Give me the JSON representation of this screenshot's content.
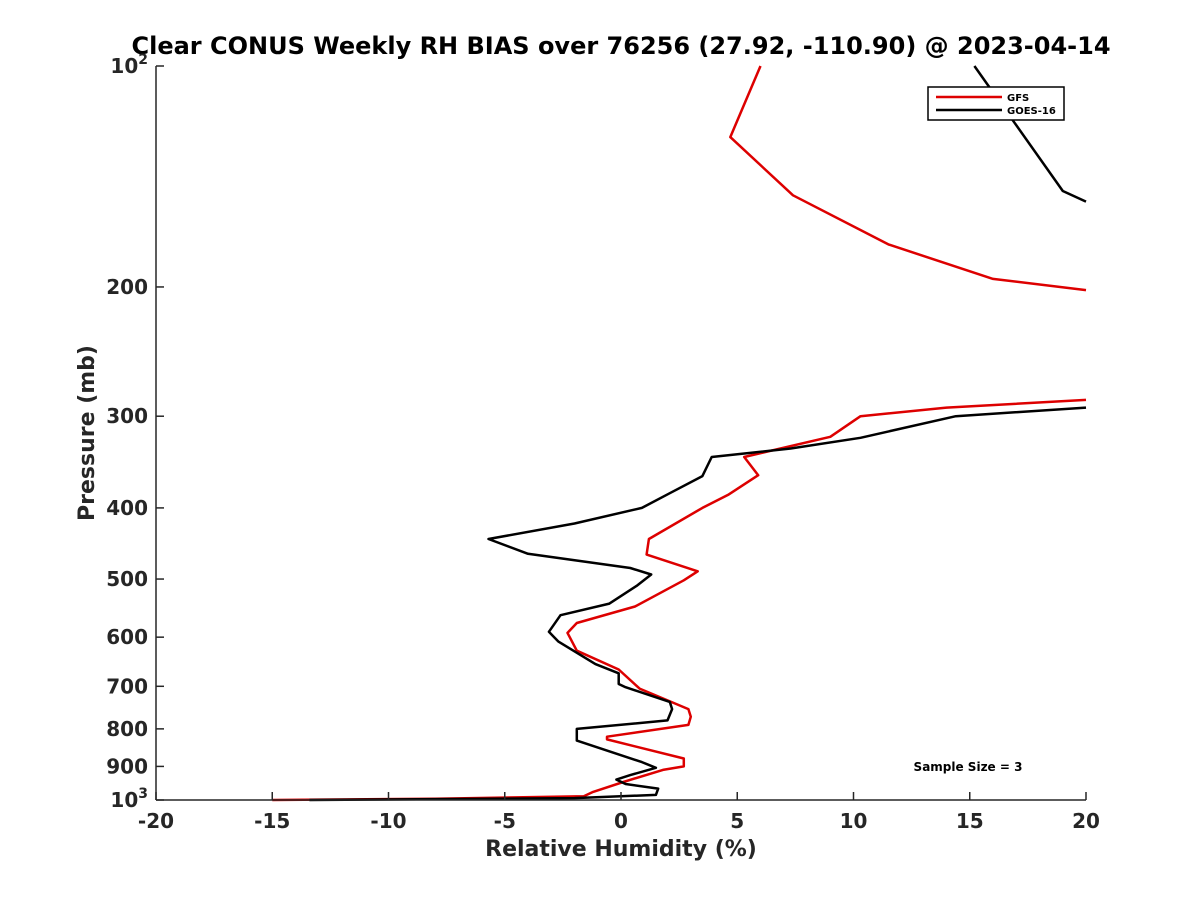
{
  "chart_data": {
    "type": "line",
    "title": "Clear CONUS Weekly RH BIAS over 76256 (27.92, -110.90) @ 2023-04-14",
    "xlabel": "Relative Humidity (%)",
    "ylabel": "Pressure (mb)",
    "xlim": [
      -20,
      20
    ],
    "ylim": [
      100,
      1000
    ],
    "yscale": "log",
    "y_reversed": true,
    "grid": false,
    "x_ticks": [
      -20,
      -15,
      -10,
      -5,
      0,
      5,
      10,
      15,
      20
    ],
    "x_tick_labels": [
      "-20",
      "-15",
      "-10",
      "-5",
      "0",
      "5",
      "10",
      "15",
      "20"
    ],
    "y_ticks": [
      {
        "value": 100,
        "label": "10",
        "exp": "2"
      },
      {
        "value": 200,
        "label": "200"
      },
      {
        "value": 300,
        "label": "300"
      },
      {
        "value": 400,
        "label": "400"
      },
      {
        "value": 500,
        "label": "500"
      },
      {
        "value": 600,
        "label": "600"
      },
      {
        "value": 700,
        "label": "700"
      },
      {
        "value": 800,
        "label": "800"
      },
      {
        "value": 900,
        "label": "900"
      },
      {
        "value": 1000,
        "label": "10",
        "exp": "3"
      }
    ],
    "legend_position": "top-right",
    "annotation": "Sample Size = 3",
    "series": [
      {
        "name": "GFS",
        "color": "#dd0000",
        "segments": [
          {
            "x": [
              6.0,
              4.7,
              7.4,
              11.5,
              16.0,
              20.0
            ],
            "y": [
              100,
              125,
              150,
              175,
              195,
              202
            ]
          },
          {
            "x": [
              20.0,
              14.0,
              10.3,
              9.0,
              5.3,
              5.9,
              4.6,
              3.5,
              1.2,
              1.1,
              3.3,
              2.7,
              0.6,
              -1.9,
              -2.3,
              -1.9,
              -0.1,
              0.8,
              2.9,
              3.0,
              2.9,
              -0.6,
              -0.6,
              2.7,
              2.7,
              1.8,
              0.1,
              -1.2,
              -1.6,
              -8.0,
              -15.0
            ],
            "y": [
              285,
              292,
              300,
              320,
              341,
              361,
              384,
              400,
              441,
              463,
              488,
              502,
              545,
              574,
              592,
              626,
              664,
              705,
              752,
              770,
              790,
              820,
              827,
              878,
              900,
              910,
              945,
              975,
              988,
              996,
              1000
            ]
          }
        ]
      },
      {
        "name": "GOES-16",
        "color": "#000000",
        "segments": [
          {
            "x": [
              15.2,
              19.0,
              20.0
            ],
            "y": [
              100,
              148,
              153
            ]
          },
          {
            "x": [
              20.0,
              14.4,
              10.3,
              7.3,
              3.9,
              3.5,
              2.1,
              0.9,
              -2.0,
              -5.7,
              -4.0,
              0.4,
              1.3,
              0.7,
              -0.5,
              -2.6,
              -3.1,
              -2.7,
              -1.1,
              -0.1,
              -0.1,
              0.2,
              2.1,
              2.2,
              2.0,
              -1.9,
              -1.9,
              0.9,
              1.5,
              0.4,
              -0.2,
              0.2,
              1.6,
              1.5,
              -2.0,
              -13.4
            ],
            "y": [
              292,
              300,
              321,
              332,
              341,
              362,
              382,
              400,
              420,
              441,
              462,
              483,
              493,
              510,
              540,
              560,
              590,
              608,
              653,
              672,
              695,
              702,
              735,
              752,
              779,
              800,
              830,
              888,
              904,
              925,
              938,
              951,
              965,
              984,
              994,
              1000
            ]
          }
        ]
      }
    ]
  }
}
